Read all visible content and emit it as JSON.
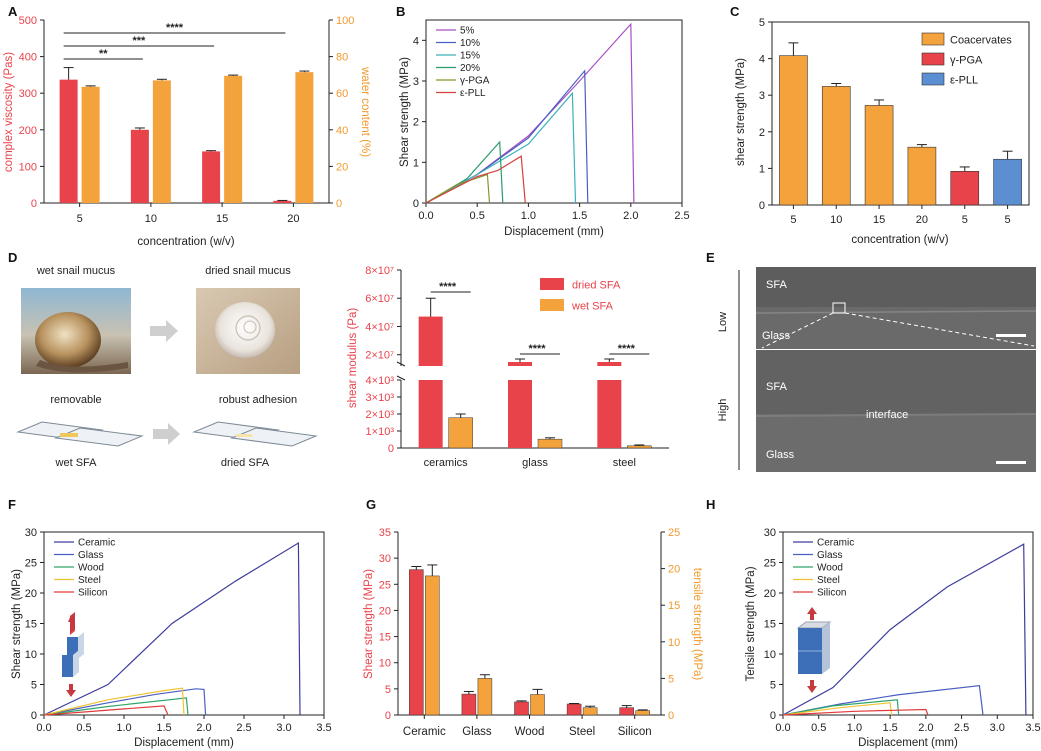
{
  "colors": {
    "red": "#e8434b",
    "orange": "#f4a23c",
    "blue": "#5b8fd1",
    "red_text": "#e8434b",
    "orange_text": "#f29a2e"
  },
  "panels": {
    "A": {
      "label": "A"
    },
    "B": {
      "label": "B"
    },
    "C": {
      "label": "C"
    },
    "D": {
      "label": "D"
    },
    "E": {
      "label": "E"
    },
    "F": {
      "label": "F"
    },
    "G": {
      "label": "G"
    },
    "H": {
      "label": "H"
    }
  },
  "chart_data": [
    {
      "id": "A",
      "type": "bar",
      "categories": [
        "5",
        "10",
        "15",
        "20"
      ],
      "xlabel": "concentration (w/v)",
      "ylabel": "complex viscosity (Pas)",
      "ylabel_right": "water content (%)",
      "ylim": [
        0,
        500
      ],
      "ylim_right": [
        0,
        100
      ],
      "yticks": [
        "0",
        "100",
        "200",
        "300",
        "400",
        "500"
      ],
      "yticks_right": [
        "0",
        "20",
        "40",
        "60",
        "80",
        "100"
      ],
      "series": [
        {
          "axis": "left",
          "color": "#e8434b",
          "values": [
            337,
            200,
            141,
            6
          ],
          "errors": [
            33,
            5,
            2,
            1
          ]
        },
        {
          "axis": "right",
          "color": "#f4a23c",
          "values": [
            63.5,
            67,
            69.5,
            71.5
          ],
          "errors": [
            0.5,
            0.6,
            0.4,
            0.6
          ]
        }
      ],
      "significance": [
        {
          "from": 0,
          "to": 1,
          "label": "**"
        },
        {
          "from": 0,
          "to": 2,
          "label": "***"
        },
        {
          "from": 0,
          "to": 3,
          "label": "****"
        }
      ]
    },
    {
      "id": "B",
      "type": "line",
      "xlabel": "Displacement (mm)",
      "ylabel": "Shear strength (MPa)",
      "xlim": [
        0,
        2.5
      ],
      "ylim": [
        0,
        4.5
      ],
      "xticks": [
        "0.0",
        "0.5",
        "1.0",
        "1.5",
        "2.0",
        "2.5"
      ],
      "yticks": [
        "0",
        "1",
        "2",
        "3",
        "4"
      ],
      "series": [
        {
          "name": "5%",
          "color": "#a64fc4",
          "points": [
            [
              0,
              0
            ],
            [
              0.5,
              0.7
            ],
            [
              1.0,
              1.65
            ],
            [
              1.5,
              3.0
            ],
            [
              2.0,
              4.4
            ],
            [
              2.03,
              0
            ]
          ]
        },
        {
          "name": "10%",
          "color": "#4a5fc1",
          "points": [
            [
              0,
              0
            ],
            [
              0.5,
              0.7
            ],
            [
              1.0,
              1.6
            ],
            [
              1.55,
              3.25
            ],
            [
              1.58,
              0
            ]
          ]
        },
        {
          "name": "15%",
          "color": "#3db0b8",
          "points": [
            [
              0,
              0
            ],
            [
              0.5,
              0.7
            ],
            [
              1.0,
              1.45
            ],
            [
              1.43,
              2.7
            ],
            [
              1.46,
              0
            ]
          ]
        },
        {
          "name": "20%",
          "color": "#2a9c6a",
          "points": [
            [
              0,
              0
            ],
            [
              0.4,
              0.6
            ],
            [
              0.72,
              1.5
            ],
            [
              0.75,
              0
            ]
          ]
        },
        {
          "name": "γ-PGA",
          "color": "#7e9a2a",
          "points": [
            [
              0,
              0
            ],
            [
              0.3,
              0.45
            ],
            [
              0.6,
              0.7
            ],
            [
              0.62,
              0
            ]
          ]
        },
        {
          "name": "ε-PLL",
          "color": "#d6403f",
          "points": [
            [
              0,
              0
            ],
            [
              0.5,
              0.65
            ],
            [
              0.7,
              0.8
            ],
            [
              0.93,
              1.15
            ],
            [
              0.97,
              0
            ]
          ]
        }
      ]
    },
    {
      "id": "C",
      "type": "bar",
      "categories": [
        "5",
        "10",
        "15",
        "20",
        "5",
        "5"
      ],
      "xlabel": "concentration (w/v)",
      "ylabel": "shear strength (MPa)",
      "ylim": [
        0,
        5
      ],
      "yticks": [
        "0",
        "1",
        "2",
        "3",
        "4",
        "5"
      ],
      "values": [
        4.08,
        3.24,
        2.72,
        1.58,
        0.92,
        1.25
      ],
      "errors": [
        0.35,
        0.08,
        0.15,
        0.07,
        0.12,
        0.22
      ],
      "bar_series": [
        0,
        0,
        0,
        0,
        1,
        2
      ],
      "legend": [
        "Coacervates",
        "γ-PGA",
        "ε-PLL"
      ],
      "legend_colors": [
        "#f4a23c",
        "#e8434b",
        "#5b8fd1"
      ]
    },
    {
      "id": "D",
      "type": "bar",
      "categories": [
        "ceramics",
        "glass",
        "steel"
      ],
      "ylabel": "shear modulus (Pa)",
      "yticks_low": [
        "0",
        "1×10³",
        "2×10³",
        "3×10³",
        "4×10³"
      ],
      "yticks_high": [
        "2×10⁷",
        "4×10⁷",
        "6×10⁷",
        "8×10⁷"
      ],
      "legend": [
        "dried SFA",
        "wet SFA"
      ],
      "series": [
        {
          "name": "dried SFA",
          "color": "#e8434b",
          "values": [
            47000000,
            10000000,
            5800000
          ],
          "errors": [
            13000000,
            800000,
            900000
          ]
        },
        {
          "name": "wet SFA",
          "color": "#f4a23c",
          "values": [
            1780,
            520,
            130
          ],
          "errors": [
            220,
            80,
            50
          ]
        }
      ],
      "significance": [
        "****",
        "****",
        "****"
      ]
    },
    {
      "id": "F",
      "type": "line",
      "xlabel": "Displacement (mm)",
      "ylabel": "Shear strength (MPa)",
      "xlim": [
        0,
        3.5
      ],
      "ylim": [
        0,
        30
      ],
      "xticks": [
        "0.0",
        "0.5",
        "1.0",
        "1.5",
        "2.0",
        "2.5",
        "3.0",
        "3.5"
      ],
      "yticks": [
        "0",
        "5",
        "10",
        "15",
        "20",
        "25",
        "30"
      ],
      "series": [
        {
          "name": "Ceramic",
          "color": "#3d3d9e",
          "points": [
            [
              0,
              0
            ],
            [
              0.8,
              5
            ],
            [
              1.6,
              15
            ],
            [
              2.4,
              22
            ],
            [
              3.18,
              28.2
            ],
            [
              3.2,
              0
            ]
          ]
        },
        {
          "name": "Glass",
          "color": "#4a5fc1",
          "points": [
            [
              0,
              0
            ],
            [
              0.8,
              2
            ],
            [
              1.4,
              3.4
            ],
            [
              1.9,
              4.3
            ],
            [
              2.0,
              4.2
            ],
            [
              2.02,
              0
            ]
          ]
        },
        {
          "name": "Wood",
          "color": "#2ea86a",
          "points": [
            [
              0,
              0
            ],
            [
              0.8,
              1.4
            ],
            [
              1.78,
              2.8
            ],
            [
              1.8,
              0
            ]
          ]
        },
        {
          "name": "Steel",
          "color": "#f0c330",
          "points": [
            [
              0,
              0
            ],
            [
              0.8,
              2.5
            ],
            [
              1.5,
              4.0
            ],
            [
              1.73,
              4.4
            ],
            [
              1.75,
              0
            ]
          ]
        },
        {
          "name": "Silicon",
          "color": "#e03a3a",
          "points": [
            [
              0,
              0
            ],
            [
              0.5,
              0.5
            ],
            [
              1.0,
              1.0
            ],
            [
              1.5,
              1.5
            ],
            [
              1.55,
              0
            ]
          ]
        }
      ]
    },
    {
      "id": "G",
      "type": "bar",
      "categories": [
        "Ceramic",
        "Glass",
        "Wood",
        "Steel",
        "Silicon"
      ],
      "ylabel": "Shear strength (MPa)",
      "ylabel_right": "tensile strength (MPa)",
      "ylim": [
        0,
        35
      ],
      "ylim_right": [
        0,
        25
      ],
      "yticks": [
        "0",
        "5",
        "10",
        "15",
        "20",
        "25",
        "30",
        "35"
      ],
      "yticks_right": [
        "0",
        "5",
        "10",
        "15",
        "20",
        "25"
      ],
      "series": [
        {
          "axis": "left",
          "color": "#e8434b",
          "values": [
            27.8,
            4.0,
            2.5,
            2.1,
            1.4
          ],
          "errors": [
            0.6,
            0.5,
            0.2,
            0.1,
            0.4
          ]
        },
        {
          "axis": "right",
          "color": "#f4a23c",
          "values": [
            19,
            5.0,
            2.8,
            1.0,
            0.6
          ],
          "errors": [
            1.5,
            0.5,
            0.7,
            0.2,
            0.1
          ]
        }
      ]
    },
    {
      "id": "H",
      "type": "line",
      "xlabel": "Displacement (mm)",
      "ylabel": "Tensile strength (MPa)",
      "xlim": [
        0,
        3.5
      ],
      "ylim": [
        0,
        30
      ],
      "xticks": [
        "0.0",
        "0.5",
        "1.0",
        "1.5",
        "2.0",
        "2.5",
        "3.0",
        "3.5"
      ],
      "yticks": [
        "0",
        "5",
        "10",
        "15",
        "20",
        "25",
        "30"
      ],
      "series": [
        {
          "name": "Ceramic",
          "color": "#3d3d9e",
          "points": [
            [
              0,
              0
            ],
            [
              0.7,
              4.5
            ],
            [
              1.5,
              14
            ],
            [
              2.3,
              21
            ],
            [
              3.37,
              28
            ],
            [
              3.4,
              0
            ]
          ]
        },
        {
          "name": "Glass",
          "color": "#4a5fc1",
          "points": [
            [
              0,
              0
            ],
            [
              0.8,
              1.8
            ],
            [
              1.6,
              3.3
            ],
            [
              2.75,
              4.8
            ],
            [
              2.8,
              0
            ]
          ]
        },
        {
          "name": "Wood",
          "color": "#2ea86a",
          "points": [
            [
              0,
              0
            ],
            [
              0.7,
              1.5
            ],
            [
              1.6,
              2.5
            ],
            [
              1.62,
              0
            ]
          ]
        },
        {
          "name": "Steel",
          "color": "#f0c330",
          "points": [
            [
              0,
              0
            ],
            [
              0.8,
              1.2
            ],
            [
              1.5,
              2.0
            ],
            [
              1.52,
              0
            ]
          ]
        },
        {
          "name": "Silicon",
          "color": "#e03a3a",
          "points": [
            [
              0,
              0
            ],
            [
              1.0,
              0.6
            ],
            [
              2.0,
              0.9
            ],
            [
              2.03,
              0
            ]
          ]
        }
      ]
    }
  ],
  "panel_D_text": {
    "wet_snail": "wet snail mucus",
    "dried_snail": "dried snail mucus",
    "removable": "removable",
    "robust": "robust adhesion",
    "wet_sfa": "wet SFA",
    "dried_sfa": "dried SFA"
  },
  "panel_E_text": {
    "low": "Low",
    "high": "High",
    "sfa1": "SFA",
    "glass1": "Glass",
    "sfa2": "SFA",
    "interface": "interface",
    "glass2": "Glass"
  }
}
